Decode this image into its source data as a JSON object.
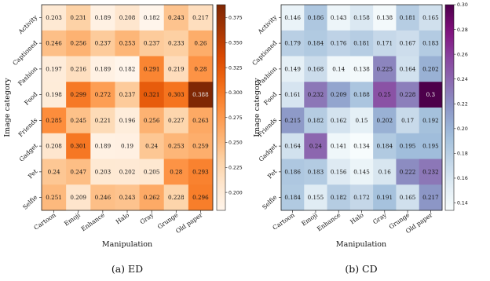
{
  "chart_data": [
    {
      "type": "heatmap",
      "caption": "(a)  ED",
      "xlabel": "Manipulation",
      "ylabel": "Image category",
      "x_categories": [
        "Cartoon",
        "Emoji",
        "Enhance",
        "Halo",
        "Gray",
        "Grunge",
        "Old paper"
      ],
      "y_categories": [
        "Activity",
        "Captioned",
        "Fashion",
        "Food",
        "Friends",
        "Gadget",
        "Pet",
        "Selfie"
      ],
      "values": [
        [
          0.203,
          0.231,
          0.189,
          0.208,
          0.182,
          0.243,
          0.217
        ],
        [
          0.246,
          0.256,
          0.237,
          0.253,
          0.237,
          0.233,
          0.26
        ],
        [
          0.197,
          0.216,
          0.189,
          0.182,
          0.291,
          0.219,
          0.28
        ],
        [
          0.198,
          0.299,
          0.272,
          0.237,
          0.321,
          0.303,
          0.388
        ],
        [
          0.285,
          0.245,
          0.221,
          0.196,
          0.256,
          0.227,
          0.263
        ],
        [
          0.208,
          0.301,
          0.189,
          0.19,
          0.24,
          0.253,
          0.259
        ],
        [
          0.24,
          0.247,
          0.203,
          0.202,
          0.205,
          0.28,
          0.293
        ],
        [
          0.251,
          0.209,
          0.246,
          0.243,
          0.262,
          0.228,
          0.296
        ]
      ],
      "colormap": "Oranges",
      "color_range": [
        0.182,
        0.388
      ],
      "colorbar_ticks": [
        "0.200",
        "0.225",
        "0.250",
        "0.275",
        "0.300",
        "0.325",
        "0.350",
        "0.375"
      ],
      "colorbar_tick_values": [
        0.2,
        0.225,
        0.25,
        0.275,
        0.3,
        0.325,
        0.35,
        0.375
      ]
    },
    {
      "type": "heatmap",
      "caption": "(b)  CD",
      "xlabel": "Manipulation",
      "ylabel": "Image category",
      "x_categories": [
        "Cartoon",
        "Emoji",
        "Enhance",
        "Halo",
        "Gray",
        "Grunge",
        "Old paper"
      ],
      "y_categories": [
        "Activity",
        "Captioned",
        "Fashion",
        "Food",
        "Friends",
        "Gadget",
        "Pet",
        "Selfie"
      ],
      "values": [
        [
          0.146,
          0.186,
          0.143,
          0.158,
          0.138,
          0.181,
          0.165
        ],
        [
          0.179,
          0.184,
          0.176,
          0.181,
          0.171,
          0.167,
          0.183
        ],
        [
          0.149,
          0.168,
          0.14,
          0.138,
          0.225,
          0.164,
          0.202
        ],
        [
          0.161,
          0.232,
          0.209,
          0.188,
          0.25,
          0.228,
          0.3
        ],
        [
          0.215,
          0.182,
          0.162,
          0.15,
          0.202,
          0.17,
          0.192
        ],
        [
          0.164,
          0.24,
          0.141,
          0.134,
          0.184,
          0.195,
          0.195
        ],
        [
          0.186,
          0.183,
          0.156,
          0.145,
          0.16,
          0.222,
          0.232
        ],
        [
          0.184,
          0.155,
          0.182,
          0.172,
          0.191,
          0.165,
          0.217
        ]
      ],
      "colormap": "BuPu",
      "color_range": [
        0.134,
        0.3
      ],
      "colorbar_ticks": [
        "0.14",
        "0.16",
        "0.18",
        "0.20",
        "0.22",
        "0.24",
        "0.26",
        "0.28",
        "0.30"
      ],
      "colorbar_tick_values": [
        0.14,
        0.16,
        0.18,
        0.2,
        0.22,
        0.24,
        0.26,
        0.28,
        0.3
      ]
    }
  ]
}
